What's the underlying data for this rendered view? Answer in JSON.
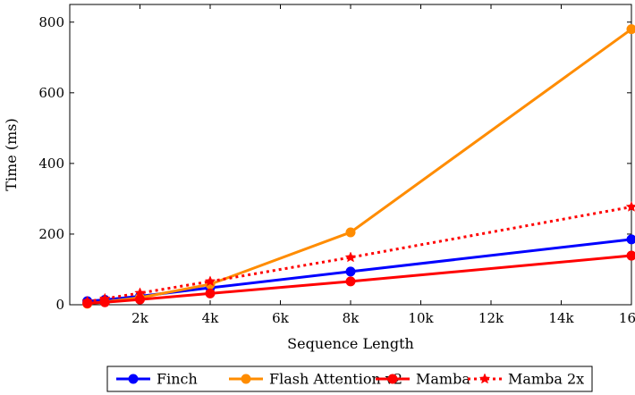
{
  "chart_data": {
    "type": "line",
    "xlabel": "Sequence Length",
    "ylabel": "Time (ms)",
    "xlim": [
      0,
      16384
    ],
    "ylim": [
      0,
      850
    ],
    "x_ticks": [
      {
        "value": 2048,
        "label": "2k"
      },
      {
        "value": 4096,
        "label": "4k"
      },
      {
        "value": 6144,
        "label": "6k"
      },
      {
        "value": 8192,
        "label": "8k"
      },
      {
        "value": 10240,
        "label": "10k"
      },
      {
        "value": 12288,
        "label": "12k"
      },
      {
        "value": 14336,
        "label": "14k"
      },
      {
        "value": 16384,
        "label": "16k"
      }
    ],
    "y_ticks": [
      {
        "value": 0,
        "label": "0"
      },
      {
        "value": 200,
        "label": "200"
      },
      {
        "value": 400,
        "label": "400"
      },
      {
        "value": 600,
        "label": "600"
      },
      {
        "value": 800,
        "label": "800"
      }
    ],
    "x": [
      512,
      1024,
      2048,
      4096,
      8192,
      16384
    ],
    "series": [
      {
        "name": "Finch",
        "color": "#0000ff",
        "marker": "circle",
        "dash": "solid",
        "values": [
          10,
          14,
          24,
          48,
          94,
          185
        ]
      },
      {
        "name": "Flash Attention v2",
        "color": "#ff8c00",
        "marker": "circle",
        "dash": "solid",
        "values": [
          3,
          8,
          20,
          58,
          205,
          780
        ]
      },
      {
        "name": "Mamba",
        "color": "#ff0000",
        "marker": "circle",
        "dash": "solid",
        "values": [
          4,
          7,
          15,
          32,
          66,
          139
        ]
      },
      {
        "name": "Mamba 2x",
        "color": "#ff0000",
        "marker": "star",
        "dash": "dotted",
        "values": [
          9,
          17,
          33,
          66,
          134,
          277
        ]
      }
    ],
    "grid": false,
    "legend_position": "bottom-center"
  }
}
